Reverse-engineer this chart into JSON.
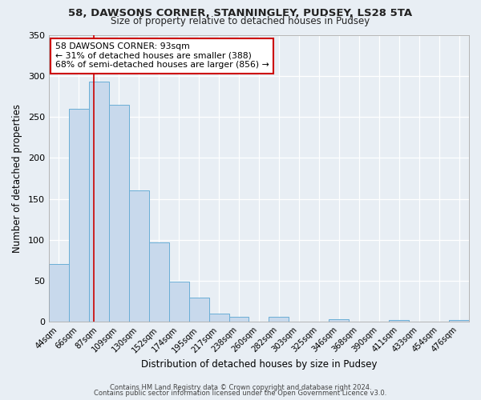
{
  "title": "58, DAWSONS CORNER, STANNINGLEY, PUDSEY, LS28 5TA",
  "subtitle": "Size of property relative to detached houses in Pudsey",
  "xlabel": "Distribution of detached houses by size in Pudsey",
  "ylabel": "Number of detached properties",
  "bar_labels": [
    "44sqm",
    "66sqm",
    "87sqm",
    "109sqm",
    "130sqm",
    "152sqm",
    "174sqm",
    "195sqm",
    "217sqm",
    "238sqm",
    "260sqm",
    "282sqm",
    "303sqm",
    "325sqm",
    "346sqm",
    "368sqm",
    "390sqm",
    "411sqm",
    "433sqm",
    "454sqm",
    "476sqm"
  ],
  "bar_values": [
    70,
    260,
    293,
    265,
    160,
    97,
    49,
    29,
    10,
    6,
    0,
    6,
    0,
    0,
    3,
    0,
    0,
    2,
    0,
    0,
    2
  ],
  "bar_color": "#c8d9ec",
  "bar_edge_color": "#6aaed6",
  "ylim": [
    0,
    350
  ],
  "yticks": [
    0,
    50,
    100,
    150,
    200,
    250,
    300,
    350
  ],
  "red_line_color": "#cc0000",
  "annotation_title": "58 DAWSONS CORNER: 93sqm",
  "annotation_line1": "← 31% of detached houses are smaller (388)",
  "annotation_line2": "68% of semi-detached houses are larger (856) →",
  "annotation_box_facecolor": "#ffffff",
  "annotation_box_edgecolor": "#cc0000",
  "footer_line1": "Contains HM Land Registry data © Crown copyright and database right 2024.",
  "footer_line2": "Contains public sector information licensed under the Open Government Licence v3.0.",
  "background_color": "#e8eef4",
  "plot_bg_color": "#e8eef4",
  "grid_color": "#ffffff"
}
